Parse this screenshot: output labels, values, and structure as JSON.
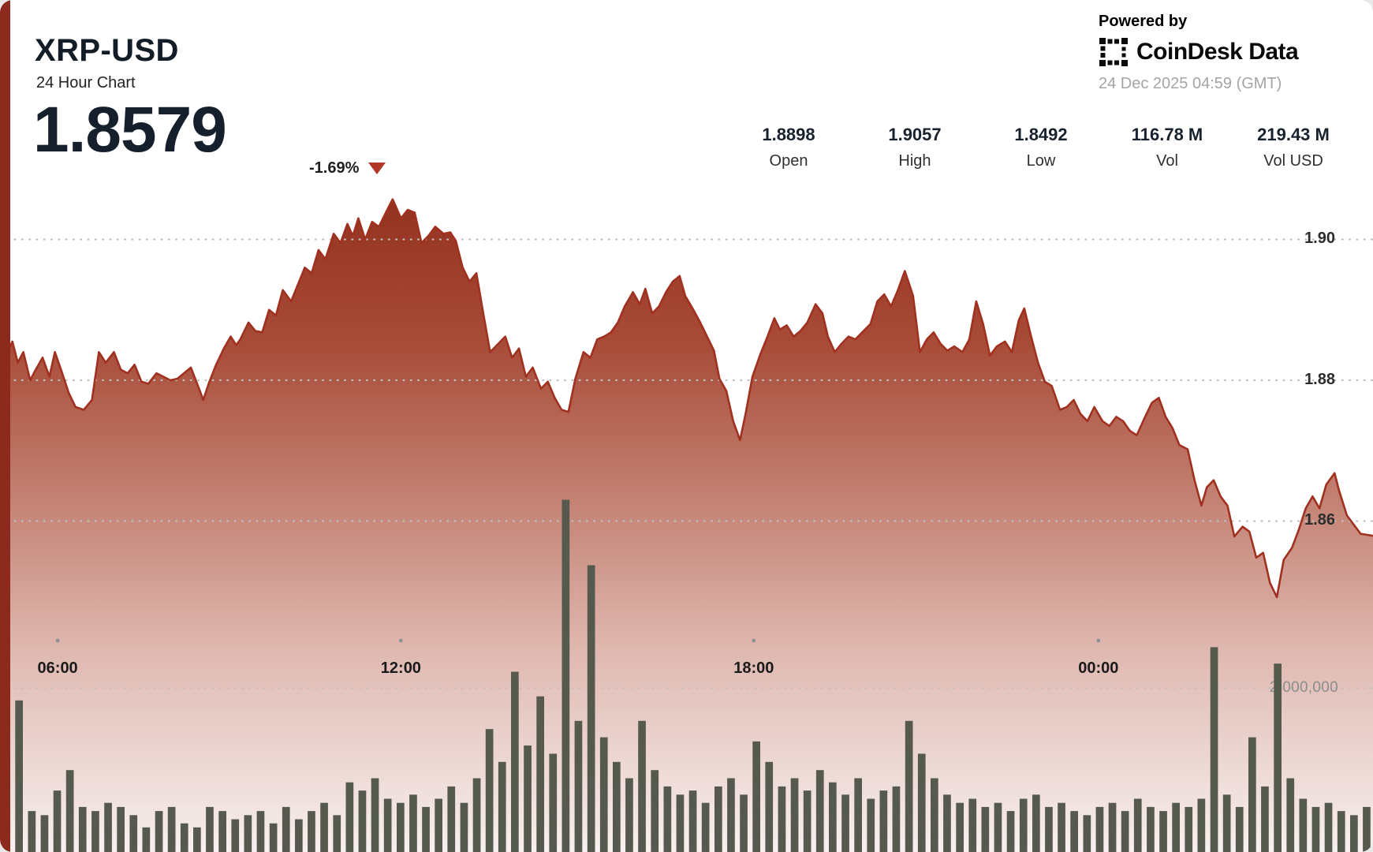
{
  "header": {
    "symbol": "XRP-USD",
    "subtitle": "24 Hour Chart",
    "price": "1.8579",
    "change": "-1.69%",
    "powered_by": "Powered by",
    "brand": "CoinDesk Data",
    "timestamp": "24 Dec 2025 04:59 (GMT)"
  },
  "stats": {
    "items": [
      {
        "value": "1.8898",
        "label": "Open"
      },
      {
        "value": "1.9057",
        "label": "High"
      },
      {
        "value": "1.8492",
        "label": "Low"
      },
      {
        "value": "116.78 M",
        "label": "Vol"
      },
      {
        "value": "219.43 M",
        "label": "Vol USD"
      }
    ]
  },
  "chart_data": {
    "type": "area",
    "title": "XRP-USD 24 Hour Chart",
    "subtitle_note": "price area chart with volume bars, 24h window ending 04:59 GMT",
    "x_axis": {
      "labels": [
        "06:00",
        "12:00",
        "18:00",
        "00:00"
      ],
      "positions_pct": [
        4.2,
        29.2,
        54.9,
        80.0
      ],
      "span_hours": 24
    },
    "price_axis": {
      "tick_labels": [
        "1.90",
        "1.88",
        "1.86"
      ],
      "tick_values": [
        1.9,
        1.88,
        1.86
      ],
      "domain_top": 1.934,
      "domain_bottom": 1.813
    },
    "volume_axis": {
      "tick_label": "2,000,000",
      "tick_value_millions": 2.0,
      "ylim_millions": [
        0,
        10.4
      ]
    },
    "price_series": {
      "x_pct": [
        0,
        0.5,
        0.9,
        1.3,
        1.7,
        2.2,
        2.6,
        3.1,
        3.6,
        4.0,
        4.5,
        5.0,
        5.5,
        6.1,
        6.7,
        7.2,
        7.7,
        8.3,
        8.8,
        9.3,
        9.8,
        10.3,
        10.8,
        11.4,
        11.9,
        12.4,
        12.9,
        13.4,
        13.9,
        14.5,
        14.8,
        15.2,
        15.7,
        16.3,
        16.8,
        17.2,
        17.5,
        18.1,
        18.6,
        19.1,
        19.6,
        20.1,
        20.6,
        21.2,
        21.7,
        22.2,
        22.7,
        23.2,
        23.7,
        24.3,
        24.8,
        25.3,
        25.7,
        26.1,
        26.6,
        27.1,
        27.6,
        28.1,
        28.6,
        29.2,
        29.7,
        30.2,
        30.7,
        31.2,
        31.7,
        32.3,
        32.8,
        33.2,
        33.7,
        34.2,
        34.7,
        35.2,
        35.7,
        36.3,
        36.8,
        37.3,
        37.8,
        38.3,
        38.8,
        39.4,
        39.9,
        40.4,
        40.9,
        41.4,
        41.9,
        42.5,
        43.0,
        43.5,
        44.0,
        44.5,
        45.0,
        45.5,
        46.1,
        46.6,
        47.0,
        47.5,
        48.0,
        48.5,
        49.0,
        49.5,
        49.9,
        50.5,
        51.0,
        51.5,
        52.0,
        52.4,
        52.9,
        53.4,
        53.9,
        54.3,
        54.8,
        55.4,
        55.9,
        56.4,
        56.8,
        57.3,
        57.8,
        58.3,
        58.8,
        59.4,
        59.9,
        60.3,
        60.8,
        61.3,
        61.8,
        62.3,
        62.8,
        63.4,
        63.9,
        64.4,
        64.9,
        65.4,
        65.9,
        66.5,
        67.0,
        67.5,
        68.0,
        68.5,
        69.0,
        69.5,
        70.1,
        70.6,
        71.1,
        71.6,
        72.1,
        72.6,
        73.2,
        73.7,
        74.2,
        74.6,
        75.1,
        75.6,
        76.1,
        76.6,
        77.2,
        77.7,
        78.2,
        78.7,
        79.2,
        79.7,
        80.3,
        80.8,
        81.3,
        81.8,
        82.3,
        82.8,
        83.4,
        83.9,
        84.4,
        84.9,
        85.4,
        85.9,
        86.5,
        87.0,
        87.5,
        87.9,
        88.4,
        88.9,
        89.4,
        89.9,
        90.5,
        91.0,
        91.5,
        92.0,
        92.5,
        93.0,
        93.5,
        94.1,
        94.6,
        95.1,
        95.6,
        96.1,
        96.6,
        97.2,
        97.5,
        98.1,
        98.6,
        99.1,
        100
      ],
      "values": [
        1.8865,
        1.8838,
        1.8855,
        1.8825,
        1.884,
        1.88,
        1.8815,
        1.8832,
        1.8805,
        1.884,
        1.8812,
        1.8782,
        1.8762,
        1.8758,
        1.8772,
        1.884,
        1.8825,
        1.884,
        1.8815,
        1.881,
        1.8822,
        1.8798,
        1.8795,
        1.881,
        1.8805,
        1.88,
        1.8802,
        1.881,
        1.8818,
        1.8788,
        1.8772,
        1.8795,
        1.882,
        1.8845,
        1.8862,
        1.885,
        1.8858,
        1.8882,
        1.887,
        1.8868,
        1.89,
        1.8892,
        1.8928,
        1.8912,
        1.8936,
        1.896,
        1.8952,
        1.8985,
        1.8972,
        1.9008,
        1.8995,
        1.9022,
        1.9005,
        1.903,
        1.9,
        1.9025,
        1.9018,
        1.9038,
        1.9057,
        1.903,
        1.9042,
        1.9038,
        1.8995,
        1.9005,
        1.9018,
        1.9008,
        1.901,
        1.8998,
        1.896,
        1.894,
        1.8952,
        1.8895,
        1.884,
        1.8852,
        1.8862,
        1.8832,
        1.8845,
        1.8805,
        1.8818,
        1.8788,
        1.8798,
        1.8775,
        1.8758,
        1.8755,
        1.8802,
        1.884,
        1.8832,
        1.8858,
        1.8862,
        1.8868,
        1.8882,
        1.8905,
        1.8925,
        1.8908,
        1.893,
        1.8895,
        1.8905,
        1.8925,
        1.894,
        1.8948,
        1.892,
        1.89,
        1.8882,
        1.8862,
        1.8842,
        1.8802,
        1.8785,
        1.8742,
        1.8715,
        1.8752,
        1.8805,
        1.8838,
        1.8862,
        1.8888,
        1.8872,
        1.8878,
        1.8862,
        1.887,
        1.8882,
        1.8908,
        1.8895,
        1.8862,
        1.884,
        1.8852,
        1.8862,
        1.8858,
        1.8868,
        1.888,
        1.8912,
        1.8922,
        1.8905,
        1.8928,
        1.8955,
        1.892,
        1.884,
        1.8858,
        1.8868,
        1.8852,
        1.8842,
        1.8848,
        1.884,
        1.8858,
        1.8912,
        1.888,
        1.8835,
        1.8848,
        1.8855,
        1.884,
        1.8885,
        1.8902,
        1.8862,
        1.8825,
        1.8798,
        1.8792,
        1.8758,
        1.8762,
        1.8772,
        1.8752,
        1.8742,
        1.8762,
        1.8742,
        1.8735,
        1.8748,
        1.8742,
        1.8728,
        1.8722,
        1.8748,
        1.8768,
        1.8775,
        1.8748,
        1.8732,
        1.8708,
        1.8702,
        1.8658,
        1.8622,
        1.8648,
        1.8658,
        1.8635,
        1.8622,
        1.8578,
        1.8592,
        1.8585,
        1.8548,
        1.8555,
        1.8512,
        1.8492,
        1.8545,
        1.8562,
        1.8588,
        1.8618,
        1.8635,
        1.8618,
        1.8652,
        1.8668,
        1.8645,
        1.8608,
        1.8595,
        1.8582,
        1.8579
      ]
    },
    "volume_series": {
      "unit": "millions",
      "values_millions": [
        0.55,
        1.85,
        0.5,
        0.45,
        0.75,
        1.0,
        0.55,
        0.5,
        0.6,
        0.55,
        0.45,
        0.3,
        0.5,
        0.55,
        0.35,
        0.3,
        0.55,
        0.5,
        0.4,
        0.45,
        0.5,
        0.35,
        0.55,
        0.4,
        0.5,
        0.6,
        0.45,
        0.85,
        0.75,
        0.9,
        0.65,
        0.6,
        0.7,
        0.55,
        0.65,
        0.8,
        0.6,
        0.9,
        1.5,
        1.1,
        2.2,
        1.3,
        1.9,
        1.2,
        4.3,
        1.6,
        3.5,
        1.4,
        1.1,
        0.9,
        1.6,
        1.0,
        0.8,
        0.7,
        0.75,
        0.6,
        0.8,
        0.9,
        0.7,
        1.35,
        1.1,
        0.8,
        0.9,
        0.75,
        1.0,
        0.85,
        0.7,
        0.9,
        0.65,
        0.75,
        0.8,
        1.6,
        1.2,
        0.9,
        0.7,
        0.6,
        0.65,
        0.55,
        0.6,
        0.5,
        0.65,
        0.7,
        0.55,
        0.6,
        0.5,
        0.45,
        0.55,
        0.6,
        0.5,
        0.65,
        0.55,
        0.5,
        0.6,
        0.55,
        0.65,
        2.5,
        0.7,
        0.55,
        1.4,
        0.8,
        2.3,
        0.9,
        0.65,
        0.55,
        0.6,
        0.5,
        0.45,
        0.55
      ]
    },
    "area_gradient": [
      [
        0,
        "#93321f"
      ],
      [
        0.22,
        "#a84b38"
      ],
      [
        0.45,
        "#c27f70"
      ],
      [
        0.7,
        "#e0bab2"
      ],
      [
        1,
        "#f7f0ef"
      ]
    ],
    "colors": {
      "line": "#a03120",
      "volume_bar": "#565a4e",
      "grid": "#bfbfbf",
      "tick_dot": "#8f8f8f",
      "left_strip": "#8c2b1d",
      "triangle": "#b23527",
      "accent_red": "#b03a2a"
    },
    "legend": "none",
    "grid": "dotted horizontal"
  }
}
